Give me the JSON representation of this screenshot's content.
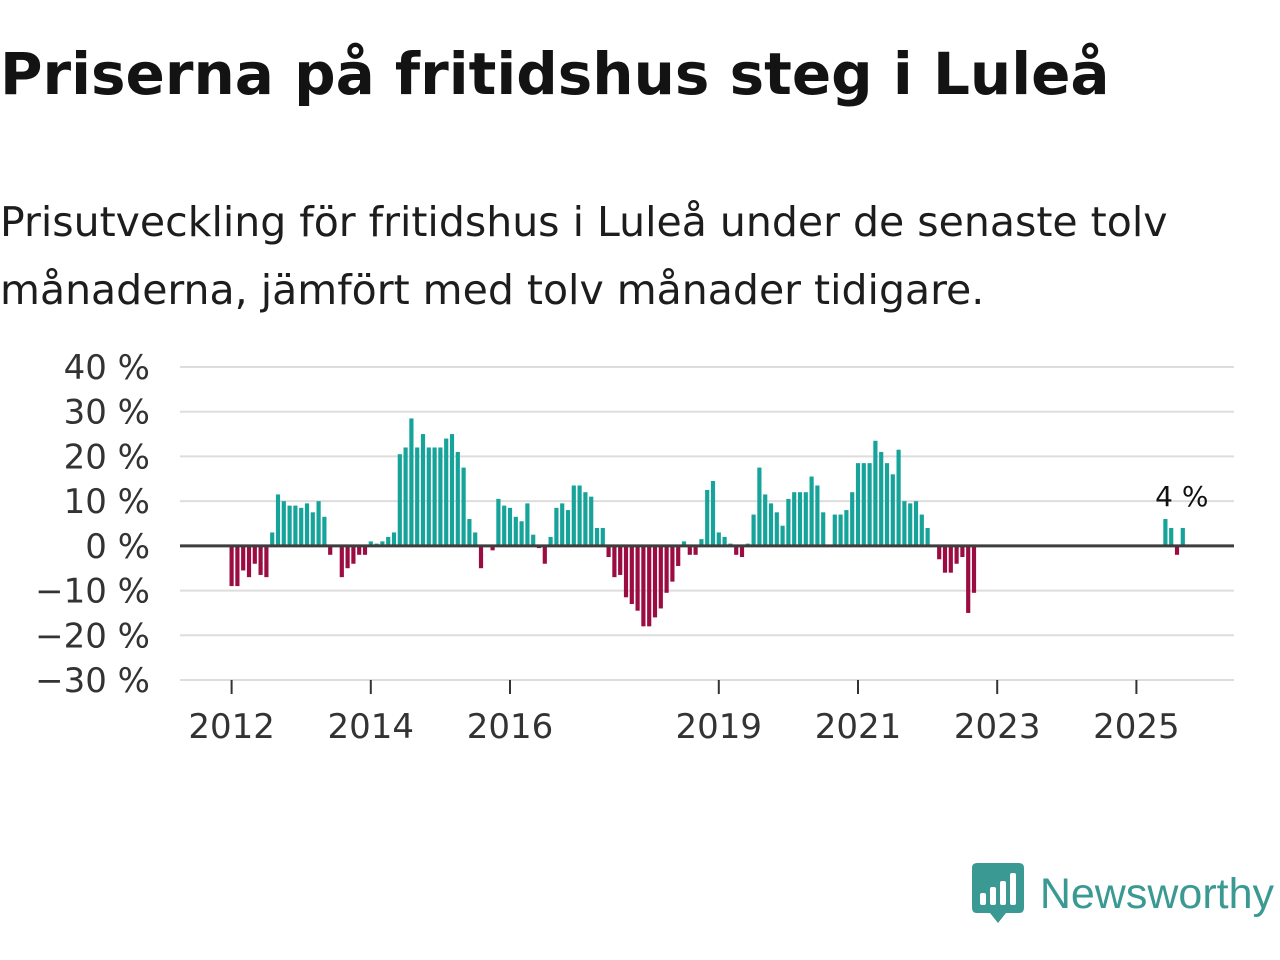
{
  "title": "Priserna på fritidshus steg i Luleå",
  "subtitle": "Prisutveckling för fritidshus i Luleå under de senaste tolv månaderna, jämfört med tolv månader tidigare.",
  "brand": {
    "name": "Newsworthy"
  },
  "colors": {
    "positive": "#16a39a",
    "negative": "#9b0c42",
    "grid": "#dddddd",
    "zero": "#3d3d3d",
    "brand": "#3a9a93"
  },
  "chart_data": {
    "type": "bar",
    "title": "Priserna på fritidshus steg i Luleå",
    "xlabel": "",
    "ylabel": "",
    "ylim": [
      -30,
      40
    ],
    "yticks": [
      {
        "value": 40,
        "label": "40 %"
      },
      {
        "value": 30,
        "label": "30 %"
      },
      {
        "value": 20,
        "label": "20 %"
      },
      {
        "value": 10,
        "label": "10 %"
      },
      {
        "value": 0,
        "label": "0 %"
      },
      {
        "value": -10,
        "label": "−10 %"
      },
      {
        "value": -20,
        "label": "−20 %"
      },
      {
        "value": -30,
        "label": "−30 %"
      }
    ],
    "xticks": [
      {
        "year": 2012,
        "label": "2012"
      },
      {
        "year": 2014,
        "label": "2014"
      },
      {
        "year": 2016,
        "label": "2016"
      },
      {
        "year": 2019,
        "label": "2019"
      },
      {
        "year": 2021,
        "label": "2021"
      },
      {
        "year": 2023,
        "label": "2023"
      },
      {
        "year": 2025,
        "label": "2025"
      }
    ],
    "start": "2012-01",
    "values": [
      -9,
      -9,
      -5.5,
      -7,
      -4,
      -6.5,
      -7,
      3,
      11.5,
      10,
      9,
      9,
      8.5,
      9.5,
      7.5,
      10,
      6.5,
      -2,
      null,
      -7,
      -5,
      -4,
      -2,
      -2,
      1,
      0.5,
      1,
      2,
      3,
      20.5,
      22,
      28.5,
      22,
      25,
      22,
      22,
      22,
      24,
      25,
      21,
      17.5,
      6,
      3,
      -5,
      null,
      -1,
      10.5,
      9,
      8.5,
      6.5,
      5.5,
      9.5,
      2.5,
      -0.5,
      -4,
      2,
      8.5,
      9.5,
      8,
      13.5,
      13.5,
      12,
      11,
      4,
      4,
      -2.5,
      -7,
      -6.5,
      -11.5,
      -13,
      -14.5,
      -18,
      -18,
      -16,
      -14,
      -10.5,
      -8,
      -4.5,
      1,
      -2,
      -2,
      1.5,
      12.5,
      14.5,
      3,
      2,
      0.5,
      -2,
      -2.5,
      0.5,
      7,
      17.5,
      11.5,
      9.5,
      7.5,
      4.5,
      10.5,
      12,
      12,
      12,
      15.5,
      13.5,
      7.5,
      null,
      7,
      7,
      8,
      12,
      18.5,
      18.5,
      18.5,
      23.5,
      21,
      18.5,
      16,
      21.5,
      10,
      9.5,
      10,
      7,
      4,
      null,
      -3,
      -6,
      -6,
      -4,
      -2.5,
      -15,
      -10.5
    ],
    "late_values": [
      {
        "month": "2025-06",
        "value": 6
      },
      {
        "month": "2025-07",
        "value": 4
      },
      {
        "month": "2025-08",
        "value": -2
      },
      {
        "month": "2025-09",
        "value": 4
      }
    ],
    "annotation": {
      "label": "4 %",
      "value": 4
    }
  }
}
